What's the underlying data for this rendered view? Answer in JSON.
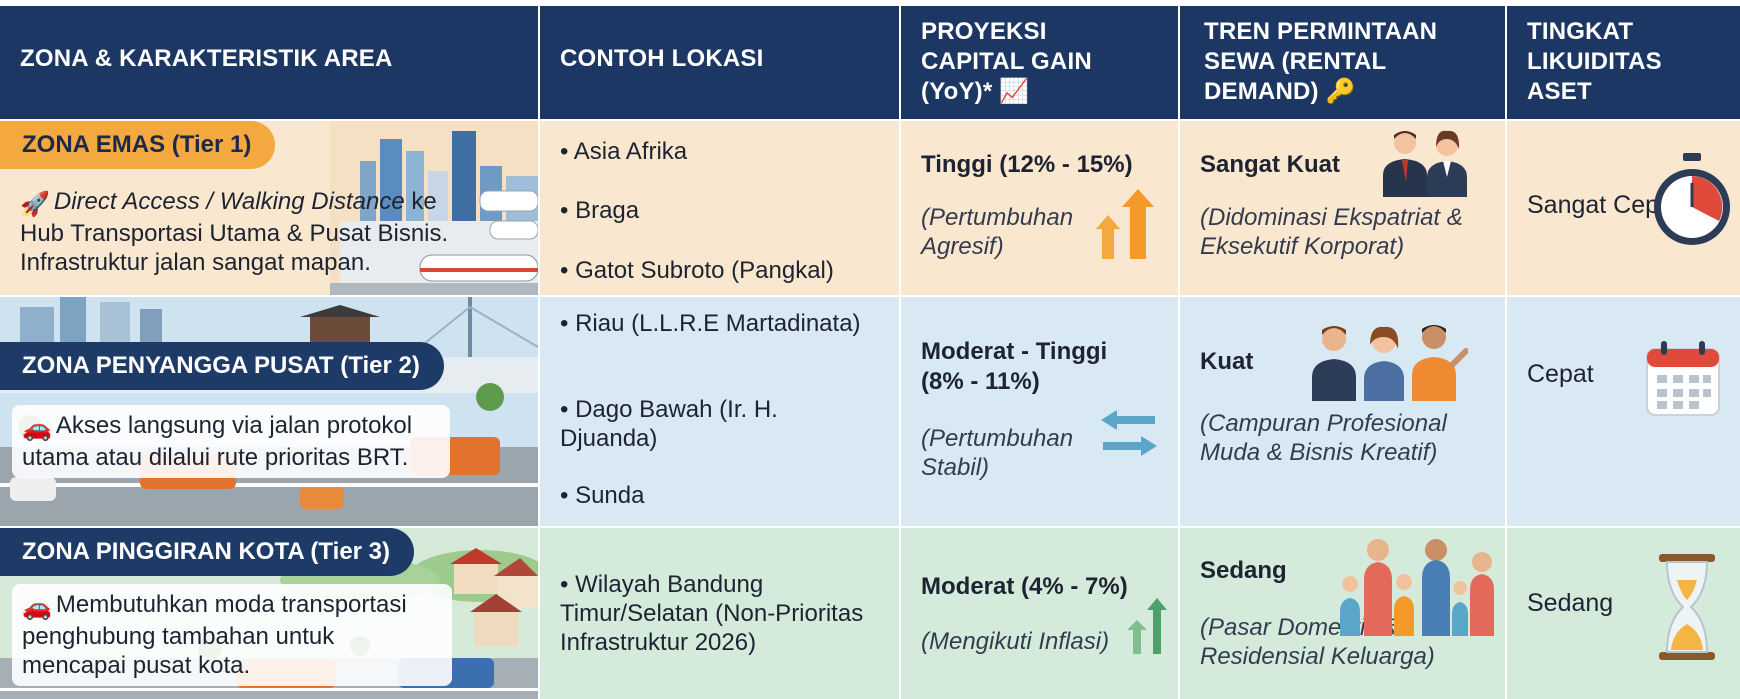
{
  "headers": {
    "zone": "ZONA & KARAKTERISTIK AREA",
    "location": "CONTOH LOKASI",
    "capital_gain": [
      "PROYEKSI",
      "CAPITAL GAIN",
      "(YoY)* 📈"
    ],
    "rental": [
      "TREN PERMINTAAN",
      "SEWA (RENTAL",
      "DEMAND) 🔑"
    ],
    "liquidity": [
      "TINGKAT",
      "LIKUIDITAS",
      "ASET"
    ]
  },
  "rows": [
    {
      "zone_name": "ZONA EMAS (Tier 1)",
      "description_italic": "Direct Access / Walking Distance",
      "description_rest": " ke Hub Transportasi Utama & Pusat Bisnis. Infrastruktur jalan sangat mapan.",
      "description_icon": "rocket-icon",
      "locations": [
        "• Asia Afrika",
        "• Braga",
        "• Gatot Subroto (Pangkal)"
      ],
      "gain_level": "Tinggi (12% - 15%)",
      "gain_note": "(Pertumbuhan Agresif)",
      "gain_icon": "double-up-arrow-icon",
      "rental_level": "Sangat Kuat",
      "rental_note": "(Didominasi Ekspatriat & Eksekutif Korporat)",
      "rental_icon": "executives-icon",
      "liquidity": "Sangat Cepat",
      "liquidity_icon": "stopwatch-icon"
    },
    {
      "zone_name": "ZONA PENYANGGA PUSAT (Tier 2)",
      "description": "Akses langsung via jalan protokol utama atau dilalui rute prioritas BRT.",
      "description_icon": "car-icon",
      "locations": [
        "• Riau (L.L.R.E Martadinata)",
        "• Dago Bawah (Ir. H. Djuanda)",
        "• Sunda"
      ],
      "gain_level": "Moderat - Tinggi (8% - 11%)",
      "gain_note": "(Pertumbuhan Stabil)",
      "gain_icon": "exchange-arrows-icon",
      "rental_level": "Kuat",
      "rental_note": "(Campuran Profesional Muda & Bisnis Kreatif)",
      "rental_icon": "young-professionals-icon",
      "liquidity": "Cepat",
      "liquidity_icon": "calendar-icon"
    },
    {
      "zone_name": "ZONA PINGGIRAN KOTA (Tier 3)",
      "description": "Membutuhkan moda transportasi penghubung tambahan untuk mencapai pusat kota.",
      "description_icon": "car-icon",
      "locations": [
        "• Wilayah Bandung Timur/Selatan (Non-Prioritas Infrastruktur 2026)"
      ],
      "gain_level": "Moderat (4% - 7%)",
      "gain_note": "(Mengikuti Inflasi)",
      "gain_icon": "up-arrow-icon",
      "rental_level": "Sedang",
      "rental_note": "(Pasar Domestik & Residensial Keluarga)",
      "rental_icon": "family-icon",
      "liquidity": "Sedang",
      "liquidity_icon": "hourglass-icon"
    }
  ],
  "colors": {
    "header": "#1c3764",
    "tier1_row": "#fae7cf",
    "tier2_row": "#d8e9f4",
    "tier3_row": "#d4ebdc",
    "gold_pill": "#f3a93f",
    "navy_pill": "#1e3a66"
  }
}
